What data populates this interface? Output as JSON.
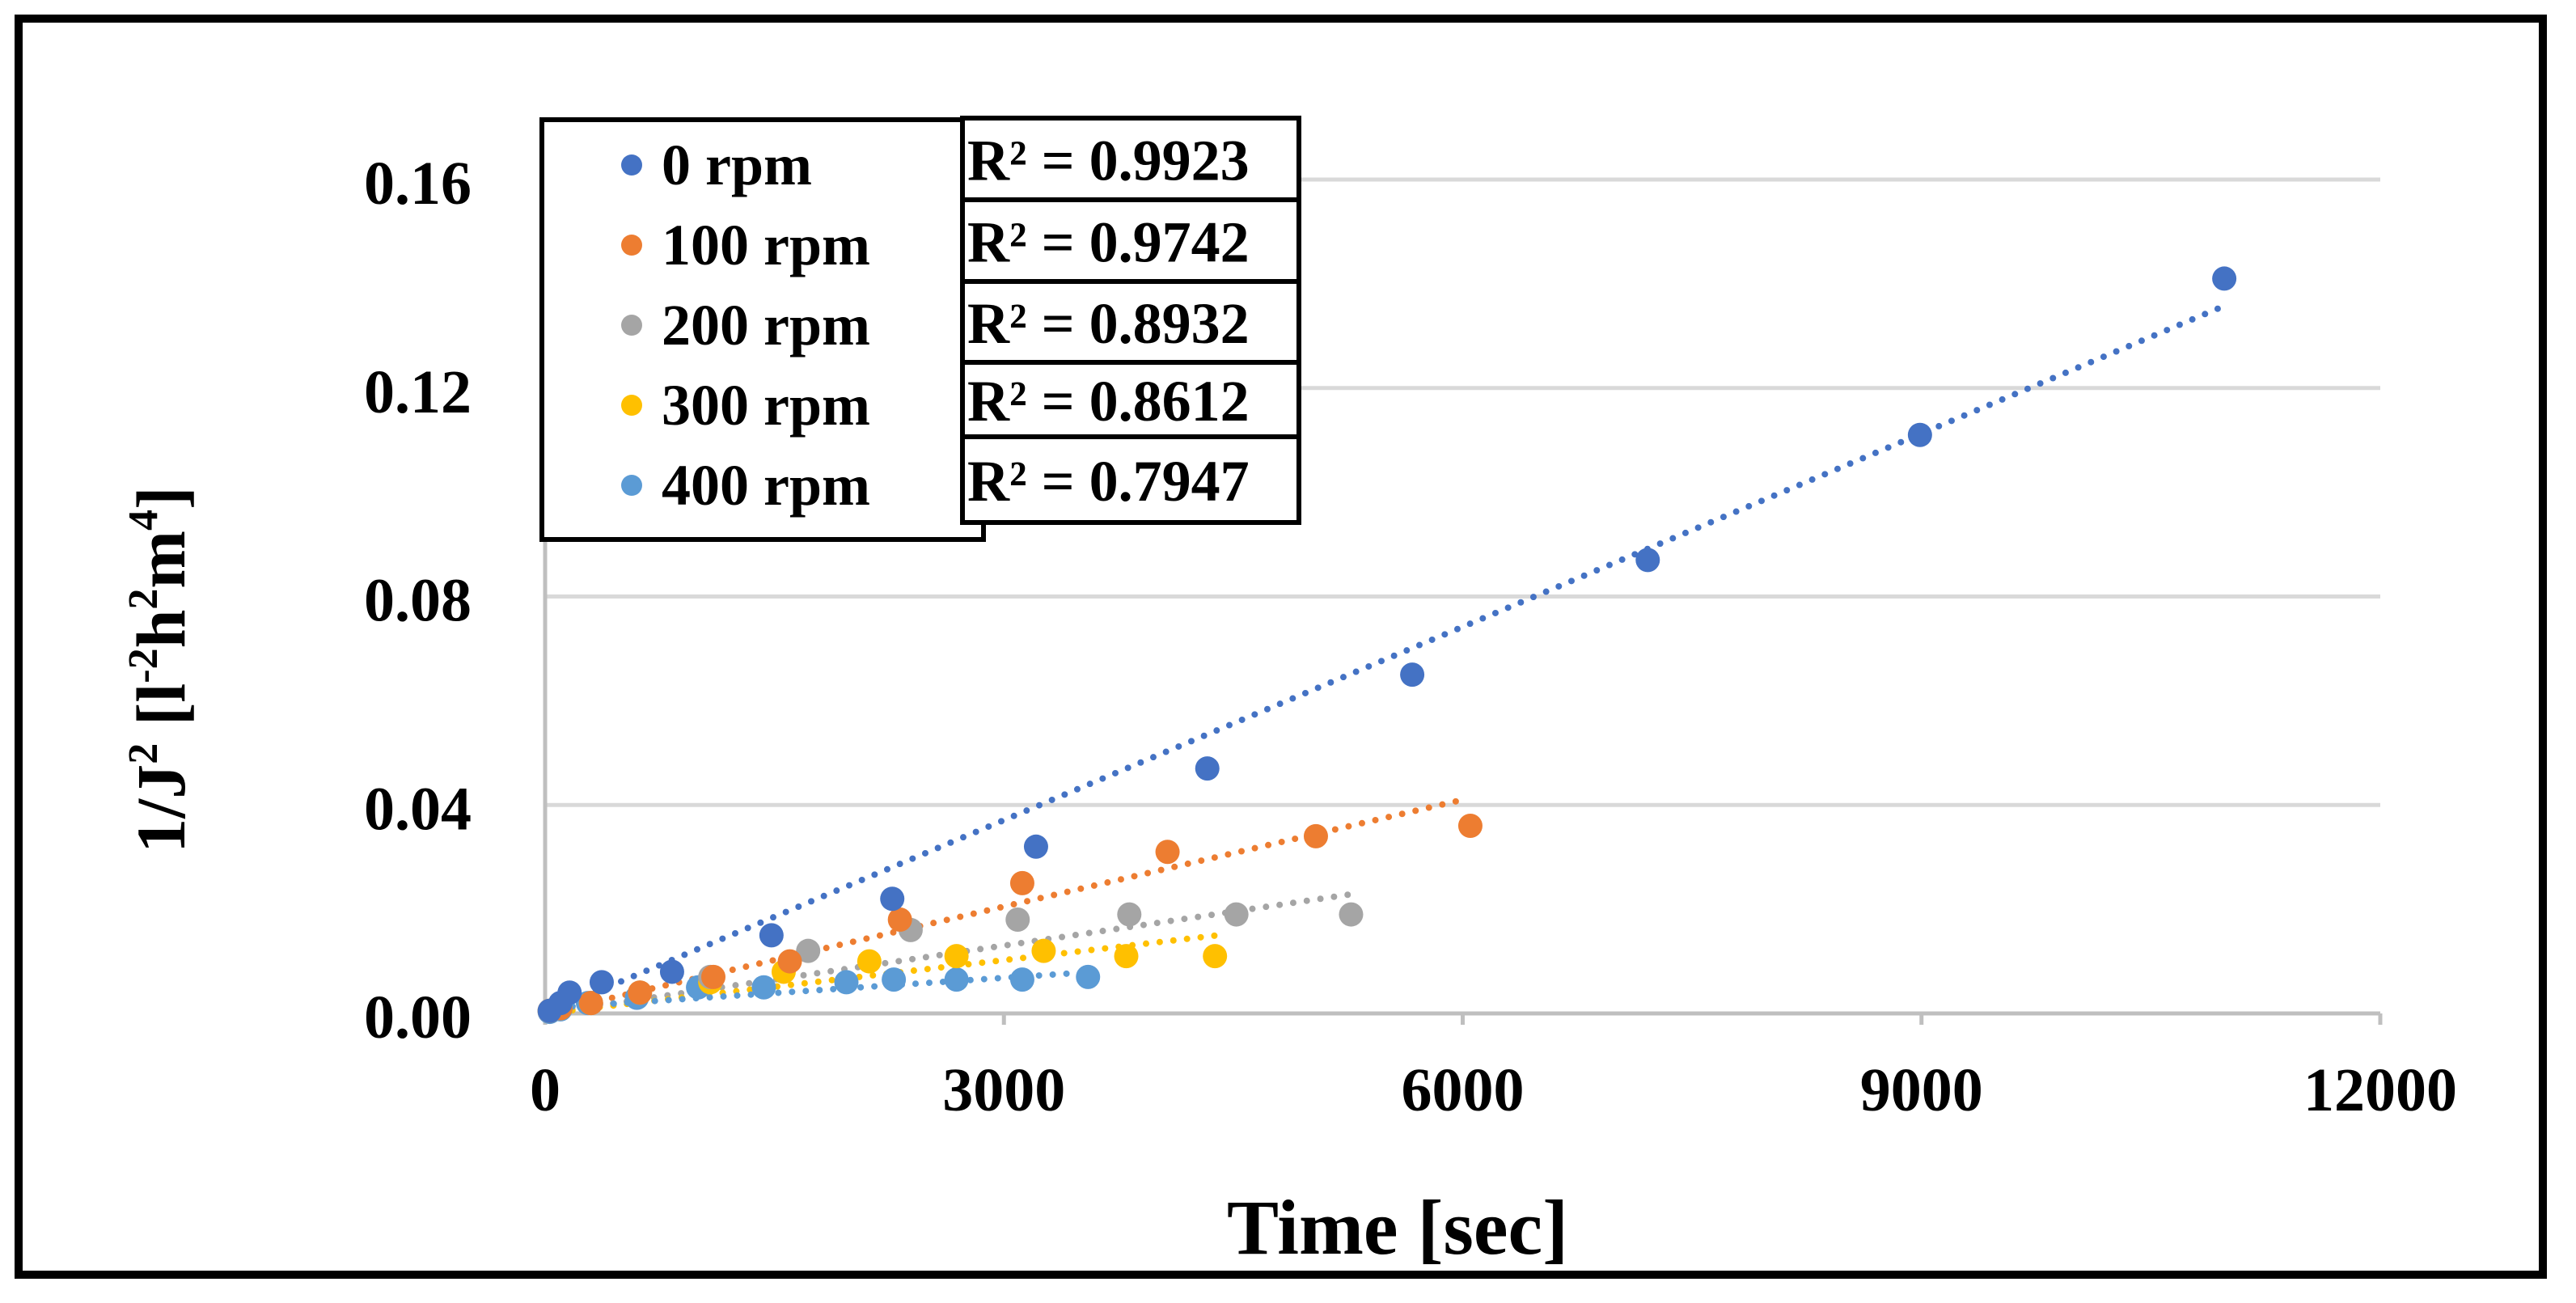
{
  "chart_data": {
    "type": "scatter",
    "xlabel": "Time [sec]",
    "ylabel_main": "1/J",
    "ylabel_sup1": "2",
    "ylabel_mid": " [l",
    "ylabel_sup2": "-2",
    "ylabel_mid2": "h",
    "ylabel_sup3": "2",
    "ylabel_mid3": "m",
    "ylabel_sup4": "4",
    "ylabel_end": "]",
    "xlim": [
      0,
      12000
    ],
    "ylim": [
      0,
      0.16
    ],
    "x_ticks": [
      "0",
      "3000",
      "6000",
      "9000",
      "12000"
    ],
    "y_ticks": [
      "0.00",
      "0.04",
      "0.08",
      "0.12",
      "0.16"
    ],
    "grid": "horizontal",
    "legend_position": "top-left",
    "trendline": "linear, dotted",
    "series": [
      {
        "name": "0 rpm",
        "color": "#4472C4",
        "r2_label": "R² = 0.9923",
        "x": [
          30,
          100,
          160,
          370,
          830,
          1480,
          2270,
          3210,
          4330,
          5670,
          7210,
          8990,
          10980
        ],
        "y": [
          0.0005,
          0.002,
          0.004,
          0.006,
          0.008,
          0.015,
          0.022,
          0.032,
          0.047,
          0.065,
          0.087,
          0.111,
          0.141
        ],
        "trend": [
          [
            0,
            0.0
          ],
          [
            11000,
            0.136
          ]
        ]
      },
      {
        "name": "100 rpm",
        "color": "#ED7D31",
        "r2_label": "R² = 0.9742",
        "x": [
          30,
          100,
          300,
          620,
          1100,
          1600,
          2320,
          3120,
          4070,
          5040,
          6050
        ],
        "y": [
          0.0005,
          0.001,
          0.002,
          0.004,
          0.007,
          0.01,
          0.018,
          0.025,
          0.031,
          0.034,
          0.036
        ],
        "trend": [
          [
            0,
            0.0
          ],
          [
            6000,
            0.041
          ]
        ]
      },
      {
        "name": "200 rpm",
        "color": "#A5A5A5",
        "r2_label": "R² = 0.8932",
        "x": [
          30,
          100,
          300,
          620,
          1080,
          1720,
          2390,
          3090,
          3820,
          4520,
          5270
        ],
        "y": [
          0.0005,
          0.001,
          0.002,
          0.004,
          0.007,
          0.012,
          0.016,
          0.018,
          0.019,
          0.019,
          0.019
        ],
        "trend": [
          [
            0,
            0.0
          ],
          [
            5300,
            0.023
          ]
        ]
      },
      {
        "name": "300 rpm",
        "color": "#FFC000",
        "r2_label": "R² = 0.8612",
        "x": [
          30,
          100,
          300,
          620,
          1080,
          1560,
          2120,
          2690,
          3260,
          3800,
          4380
        ],
        "y": [
          0.0005,
          0.001,
          0.002,
          0.004,
          0.006,
          0.008,
          0.01,
          0.011,
          0.012,
          0.011,
          0.011
        ],
        "trend": [
          [
            0,
            0.0
          ],
          [
            4400,
            0.015
          ]
        ]
      },
      {
        "name": "400 rpm",
        "color": "#5B9BD5",
        "r2_label": "R² = 0.7947",
        "x": [
          30,
          100,
          280,
          600,
          1000,
          1430,
          1970,
          2280,
          2690,
          3120,
          3550
        ],
        "y": [
          0.0003,
          0.0008,
          0.002,
          0.003,
          0.005,
          0.005,
          0.006,
          0.0065,
          0.0065,
          0.0065,
          0.007
        ],
        "trend": [
          [
            0,
            0.001
          ],
          [
            3600,
            0.008
          ]
        ]
      }
    ]
  }
}
